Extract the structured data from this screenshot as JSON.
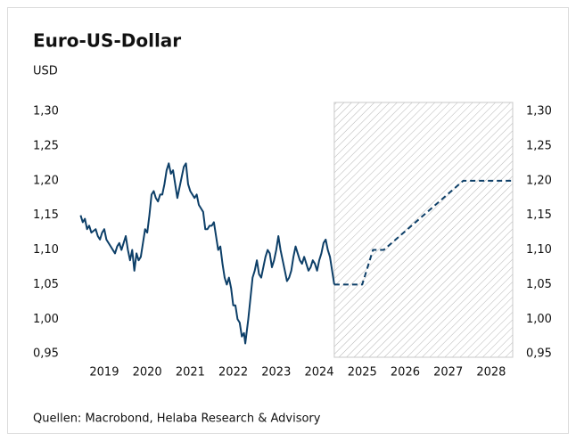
{
  "chart_data": {
    "type": "line",
    "title": "Euro-US-Dollar",
    "subtitle": "USD",
    "source": "Quellen: Macrobond, Helaba Research & Advisory",
    "xlim": [
      2018.9,
      2029.0
    ],
    "xticks": [
      {
        "value": 2019.5,
        "label": "2019"
      },
      {
        "value": 2020.5,
        "label": "2020"
      },
      {
        "value": 2021.5,
        "label": "2021"
      },
      {
        "value": 2022.5,
        "label": "2022"
      },
      {
        "value": 2023.5,
        "label": "2023"
      },
      {
        "value": 2024.5,
        "label": "2024"
      },
      {
        "value": 2025.5,
        "label": "2025"
      },
      {
        "value": 2026.5,
        "label": "2026"
      },
      {
        "value": 2027.5,
        "label": "2027"
      },
      {
        "value": 2028.5,
        "label": "2028"
      }
    ],
    "ylim": [
      0.945,
      1.313
    ],
    "yticks": [
      {
        "value": 0.95,
        "label": "0,95"
      },
      {
        "value": 1.0,
        "label": "1,00"
      },
      {
        "value": 1.05,
        "label": "1,05"
      },
      {
        "value": 1.1,
        "label": "1,10"
      },
      {
        "value": 1.15,
        "label": "1,15"
      },
      {
        "value": 1.2,
        "label": "1,20"
      },
      {
        "value": 1.25,
        "label": "1,25"
      },
      {
        "value": 1.3,
        "label": "1,30"
      }
    ],
    "y2lim": [
      0.945,
      1.313
    ],
    "y2ticks": [
      {
        "value": 0.95,
        "label": "0,95"
      },
      {
        "value": 1.0,
        "label": "1,00"
      },
      {
        "value": 1.05,
        "label": "1,05"
      },
      {
        "value": 1.1,
        "label": "1,10"
      },
      {
        "value": 1.15,
        "label": "1,15"
      },
      {
        "value": 1.2,
        "label": "1,20"
      },
      {
        "value": 1.25,
        "label": "1,25"
      },
      {
        "value": 1.3,
        "label": "1,30"
      }
    ],
    "shaded_region": [
      2024.85,
      2029.0
    ],
    "series": [
      {
        "color": "#0d3f68",
        "dashed": false,
        "x": [
          2018.95,
          2019.0,
          2019.05,
          2019.1,
          2019.15,
          2019.2,
          2019.3,
          2019.35,
          2019.4,
          2019.45,
          2019.5,
          2019.55,
          2019.6,
          2019.65,
          2019.7,
          2019.75,
          2019.8,
          2019.85,
          2019.9,
          2019.95,
          2020.0,
          2020.05,
          2020.1,
          2020.15,
          2020.2,
          2020.25,
          2020.3,
          2020.35,
          2020.4,
          2020.45,
          2020.5,
          2020.55,
          2020.6,
          2020.65,
          2020.7,
          2020.75,
          2020.8,
          2020.85,
          2020.9,
          2020.95,
          2021.0,
          2021.05,
          2021.1,
          2021.15,
          2021.2,
          2021.25,
          2021.3,
          2021.35,
          2021.4,
          2021.45,
          2021.5,
          2021.55,
          2021.6,
          2021.65,
          2021.7,
          2021.75,
          2021.8,
          2021.85,
          2021.9,
          2021.95,
          2022.0,
          2022.05,
          2022.1,
          2022.15,
          2022.2,
          2022.25,
          2022.3,
          2022.35,
          2022.4,
          2022.45,
          2022.5,
          2022.55,
          2022.6,
          2022.65,
          2022.7,
          2022.75,
          2022.78,
          2022.85,
          2022.9,
          2022.95,
          2023.0,
          2023.05,
          2023.1,
          2023.15,
          2023.2,
          2023.25,
          2023.3,
          2023.35,
          2023.4,
          2023.45,
          2023.5,
          2023.55,
          2023.6,
          2023.65,
          2023.7,
          2023.75,
          2023.8,
          2023.85,
          2023.9,
          2023.95,
          2024.0,
          2024.05,
          2024.1,
          2024.15,
          2024.2,
          2024.25,
          2024.3,
          2024.35,
          2024.4,
          2024.45,
          2024.5,
          2024.55,
          2024.6,
          2024.65,
          2024.7,
          2024.75,
          2024.8,
          2024.85
        ],
        "values": [
          1.15,
          1.14,
          1.145,
          1.13,
          1.135,
          1.125,
          1.13,
          1.12,
          1.115,
          1.125,
          1.13,
          1.115,
          1.11,
          1.105,
          1.1,
          1.095,
          1.105,
          1.11,
          1.1,
          1.11,
          1.12,
          1.1,
          1.085,
          1.1,
          1.07,
          1.095,
          1.085,
          1.09,
          1.11,
          1.13,
          1.125,
          1.15,
          1.18,
          1.185,
          1.175,
          1.17,
          1.18,
          1.18,
          1.195,
          1.215,
          1.225,
          1.21,
          1.215,
          1.195,
          1.175,
          1.19,
          1.205,
          1.22,
          1.225,
          1.195,
          1.185,
          1.18,
          1.175,
          1.18,
          1.165,
          1.16,
          1.155,
          1.13,
          1.13,
          1.135,
          1.135,
          1.14,
          1.12,
          1.1,
          1.105,
          1.08,
          1.06,
          1.05,
          1.06,
          1.045,
          1.02,
          1.02,
          1.0,
          0.995,
          0.975,
          0.98,
          0.965,
          1.0,
          1.03,
          1.06,
          1.07,
          1.085,
          1.065,
          1.06,
          1.075,
          1.09,
          1.1,
          1.095,
          1.075,
          1.085,
          1.1,
          1.12,
          1.1,
          1.085,
          1.07,
          1.055,
          1.06,
          1.07,
          1.09,
          1.105,
          1.095,
          1.085,
          1.08,
          1.09,
          1.08,
          1.07,
          1.075,
          1.085,
          1.08,
          1.07,
          1.085,
          1.095,
          1.11,
          1.115,
          1.1,
          1.09,
          1.07,
          1.05
        ]
      },
      {
        "color": "#0d3f68",
        "dashed": true,
        "x": [
          2024.85,
          2025.5,
          2025.75,
          2026.0,
          2027.85,
          2029.0
        ],
        "values": [
          1.05,
          1.05,
          1.1,
          1.1,
          1.2,
          1.2
        ]
      }
    ]
  }
}
